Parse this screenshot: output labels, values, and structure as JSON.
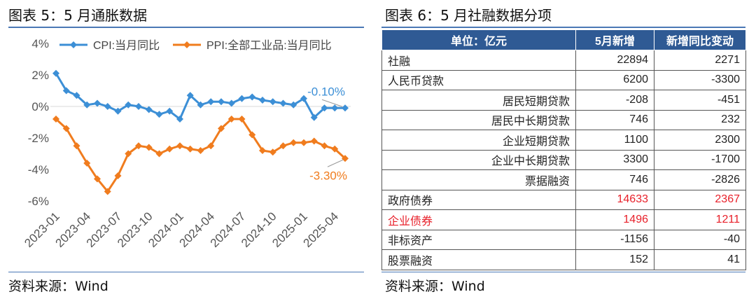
{
  "left_panel": {
    "title": "图表 5：5 月通胀数据",
    "source": "资料来源：Wind"
  },
  "right_panel": {
    "title": "图表 6：5 月社融数据分项",
    "source": "资料来源：Wind",
    "headers": [
      "单位：亿元",
      "5月新增",
      "新增同比变动"
    ],
    "rows": [
      {
        "label": "社融",
        "level": 0,
        "v1": "22894",
        "v2": "2271",
        "color": "normal"
      },
      {
        "label": "人民币贷款",
        "level": 0,
        "v1": "6200",
        "v2": "-3300",
        "color": "normal"
      },
      {
        "label": "居民短期贷款",
        "level": 1,
        "v1": "-208",
        "v2": "-451",
        "color": "normal"
      },
      {
        "label": "居民中长期贷款",
        "level": 1,
        "v1": "746",
        "v2": "232",
        "color": "normal"
      },
      {
        "label": "企业短期贷款",
        "level": 1,
        "v1": "1100",
        "v2": "2300",
        "color": "normal"
      },
      {
        "label": "企业中长期贷款",
        "level": 1,
        "v1": "3300",
        "v2": "-1700",
        "color": "normal"
      },
      {
        "label": "票据融资",
        "level": 1,
        "v1": "746",
        "v2": "-2826",
        "color": "normal"
      },
      {
        "label": "政府债券",
        "level": 0,
        "v1": "14633",
        "v2": "2367",
        "color": "red_values"
      },
      {
        "label": "企业债券",
        "level": 0,
        "v1": "1496",
        "v2": "1211",
        "color": "red_all"
      },
      {
        "label": "非标资产",
        "level": 0,
        "v1": "-1156",
        "v2": "-40",
        "color": "normal"
      },
      {
        "label": "股票融资",
        "level": 0,
        "v1": "152",
        "v2": "41",
        "color": "normal"
      }
    ]
  },
  "colors": {
    "cpi": "#3c8fd6",
    "ppi": "#f07c1e",
    "header_bg": "#2f5a94",
    "rule": "#4a78b5",
    "highlight": "#e8202a"
  },
  "chart_data": {
    "type": "line",
    "x": [
      "2023-01",
      "2023-02",
      "2023-03",
      "2023-04",
      "2023-05",
      "2023-06",
      "2023-07",
      "2023-08",
      "2023-09",
      "2023-10",
      "2023-11",
      "2023-12",
      "2024-01",
      "2024-02",
      "2024-03",
      "2024-04",
      "2024-05",
      "2024-06",
      "2024-07",
      "2024-08",
      "2024-09",
      "2024-10",
      "2024-11",
      "2024-12",
      "2025-01",
      "2025-02",
      "2025-03",
      "2025-04",
      "2025-05"
    ],
    "x_tick_labels": [
      "2023-01",
      "2023-04",
      "2023-07",
      "2023-10",
      "2024-01",
      "2024-04",
      "2024-07",
      "2024-10",
      "2025-01",
      "2025-04"
    ],
    "series": [
      {
        "name": "CPI:当月同比",
        "values": [
          2.1,
          1.0,
          0.7,
          0.1,
          0.2,
          0.0,
          -0.3,
          0.1,
          0.0,
          -0.2,
          -0.5,
          -0.3,
          -0.8,
          0.7,
          0.1,
          0.3,
          0.3,
          0.2,
          0.5,
          0.6,
          0.4,
          0.3,
          0.2,
          0.1,
          0.5,
          -0.7,
          -0.1,
          -0.1,
          -0.1
        ]
      },
      {
        "name": "PPI:全部工业品:当月同比",
        "values": [
          -0.8,
          -1.4,
          -2.5,
          -3.6,
          -4.6,
          -5.4,
          -4.4,
          -3.0,
          -2.5,
          -2.6,
          -3.0,
          -2.7,
          -2.5,
          -2.7,
          -2.8,
          -2.5,
          -1.4,
          -0.8,
          -0.8,
          -1.8,
          -2.8,
          -2.9,
          -2.5,
          -2.3,
          -2.3,
          -2.2,
          -2.5,
          -2.7,
          -3.3
        ]
      }
    ],
    "yticks": [
      "4%",
      "2%",
      "0%",
      "-2%",
      "-4%",
      "-6%"
    ],
    "ylim": [
      -6,
      4
    ],
    "annotations": [
      "-0.10%",
      "-3.30%"
    ],
    "legend_position": "top",
    "grid": false
  }
}
